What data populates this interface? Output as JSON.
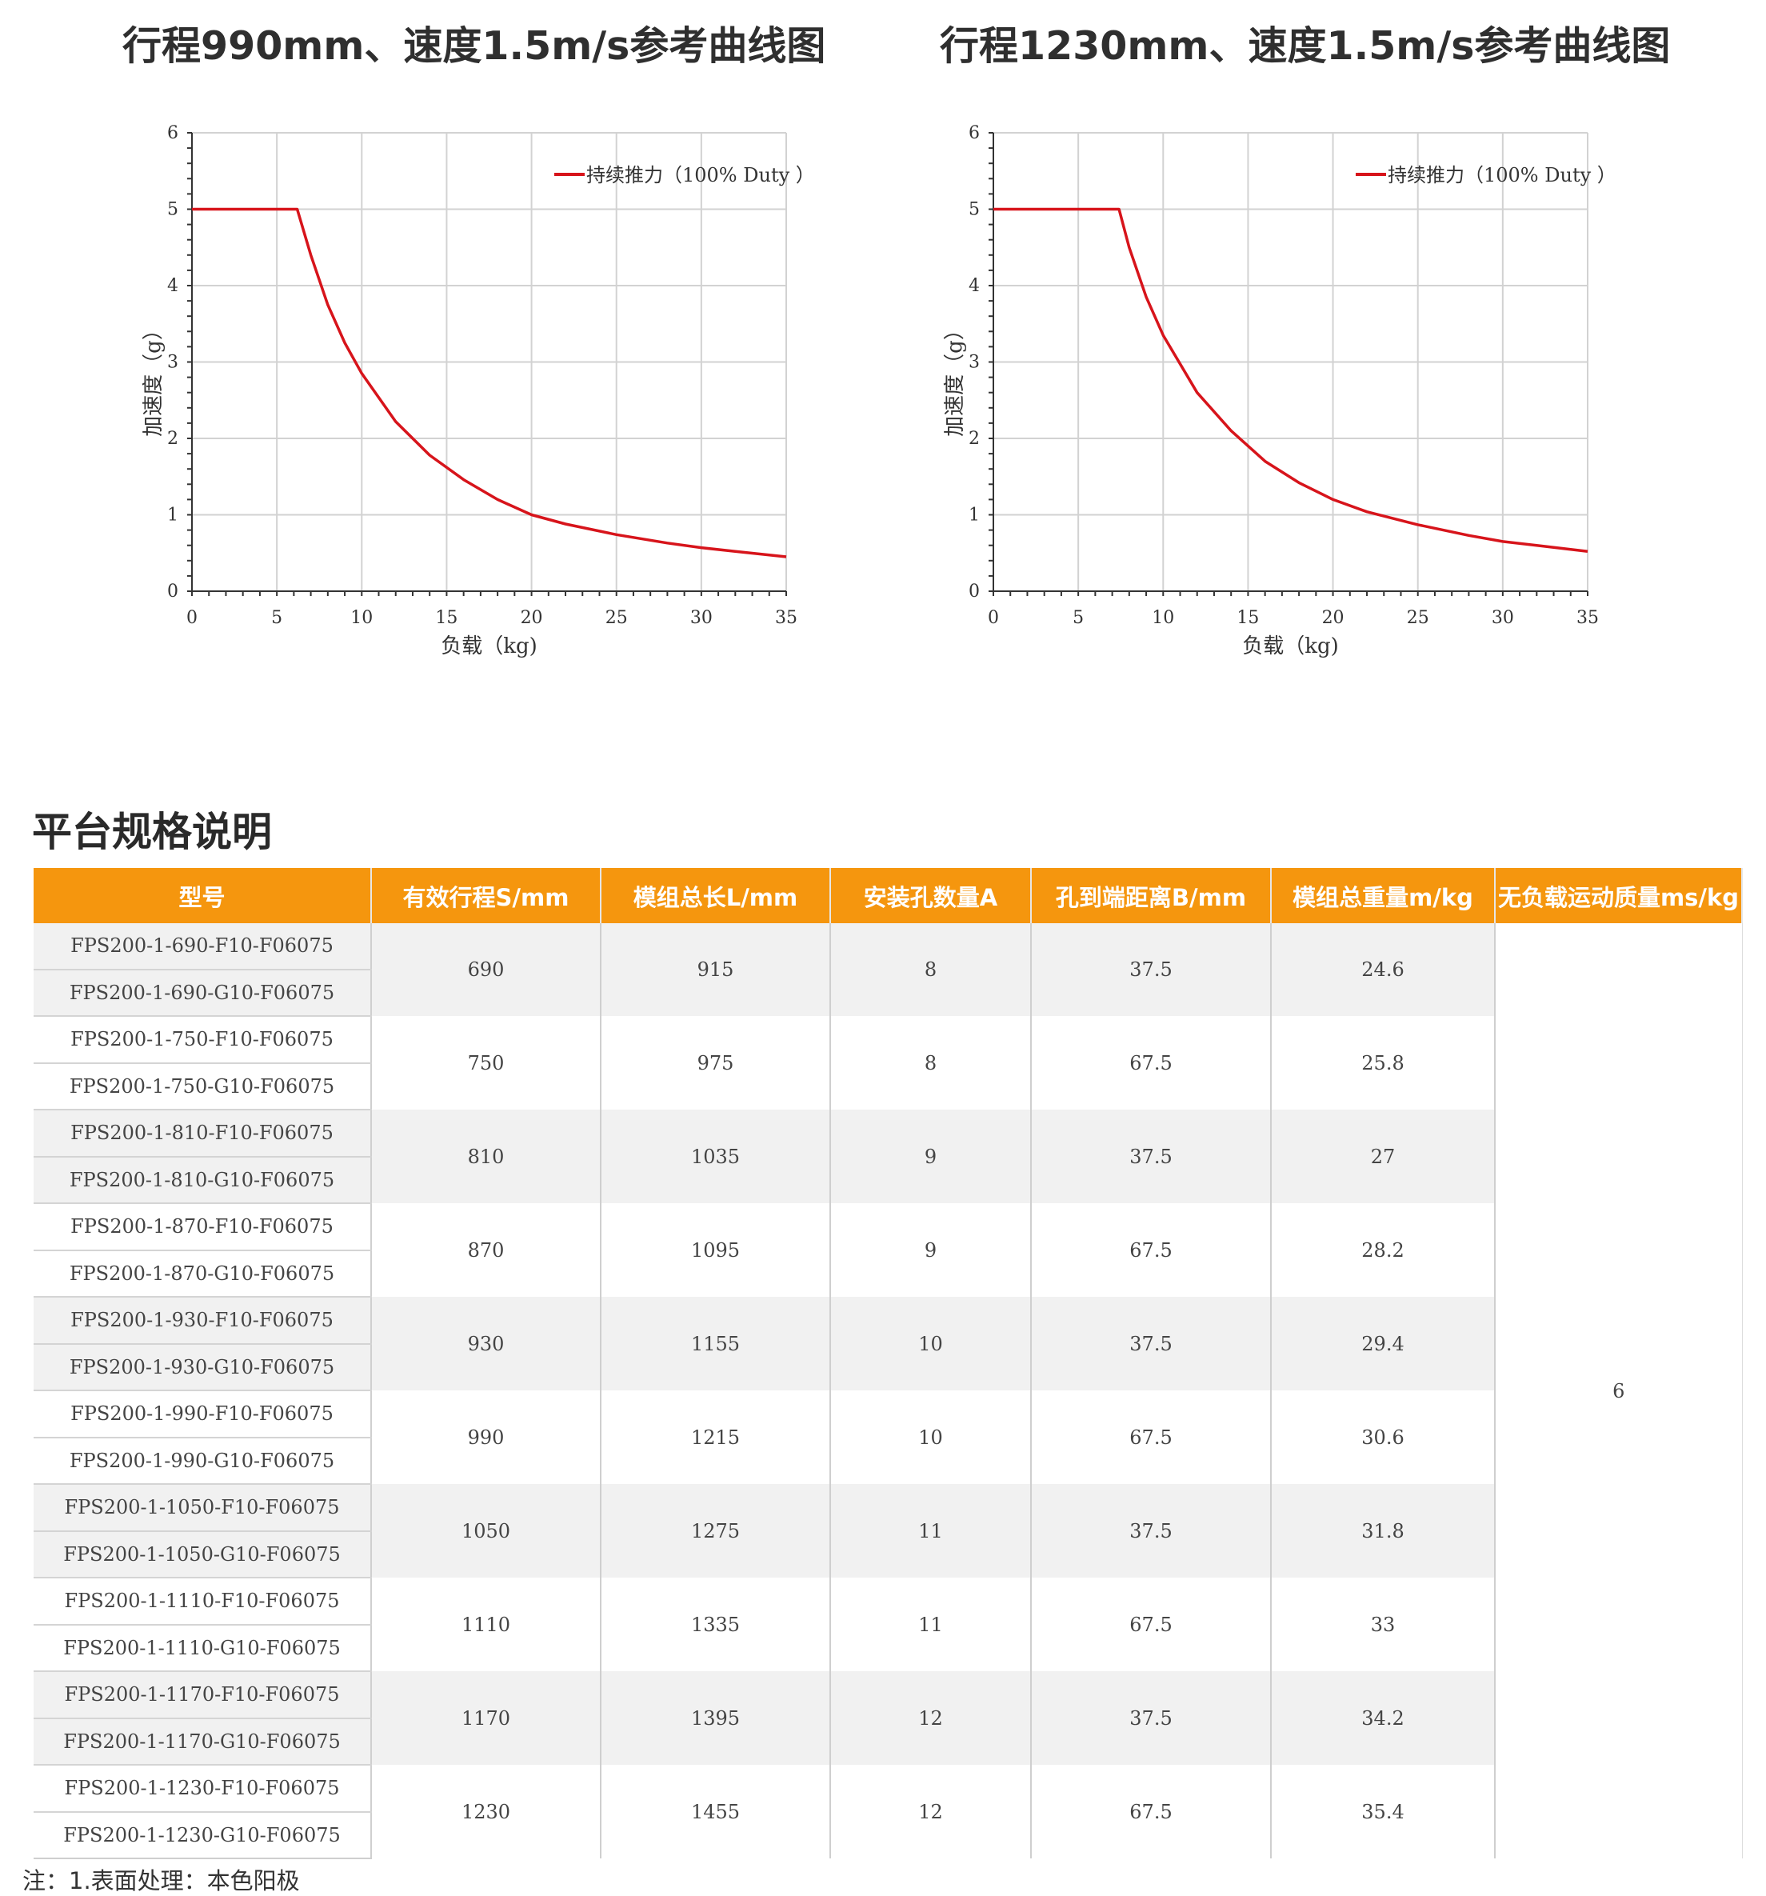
{
  "charts": [
    {
      "title": "行程990mm、速度1.5m/s参考曲线图",
      "chart_data": {
        "type": "line",
        "xlabel": "负载（kg)",
        "ylabel": "加速度（g）",
        "xlim": [
          0,
          35
        ],
        "ylim": [
          0,
          6
        ],
        "x_ticks": [
          "0",
          "5",
          "10",
          "15",
          "20",
          "25",
          "30",
          "35"
        ],
        "y_ticks": [
          "0",
          "1",
          "2",
          "3",
          "4",
          "5",
          "6"
        ],
        "grid": true,
        "legend_position": "top-right",
        "series": [
          {
            "name": "持续推力（100% Duty ）",
            "color": "#d7141b",
            "x": [
              0,
              6.2,
              7,
              8,
              9,
              10,
              12,
              14,
              16,
              18,
              20,
              22,
              25,
              28,
              30,
              32,
              35
            ],
            "y": [
              5,
              5,
              4.4,
              3.75,
              3.25,
              2.85,
              2.22,
              1.78,
              1.46,
              1.2,
              1.0,
              0.88,
              0.74,
              0.63,
              0.57,
              0.52,
              0.45
            ]
          }
        ]
      }
    },
    {
      "title": "行程1230mm、速度1.5m/s参考曲线图",
      "chart_data": {
        "type": "line",
        "xlabel": "负载（kg)",
        "ylabel": "加速度（g）",
        "xlim": [
          0,
          35
        ],
        "ylim": [
          0,
          6
        ],
        "x_ticks": [
          "0",
          "5",
          "10",
          "15",
          "20",
          "25",
          "30",
          "35"
        ],
        "y_ticks": [
          "0",
          "1",
          "2",
          "3",
          "4",
          "5",
          "6"
        ],
        "grid": true,
        "legend_position": "top-right",
        "series": [
          {
            "name": "持续推力（100% Duty ）",
            "color": "#d7141b",
            "x": [
              0,
              7.4,
              8,
              9,
              10,
              12,
              14,
              16,
              18,
              20,
              22,
              25,
              28,
              30,
              32,
              35
            ],
            "y": [
              5,
              5,
              4.5,
              3.85,
              3.35,
              2.6,
              2.1,
              1.7,
              1.42,
              1.2,
              1.04,
              0.87,
              0.73,
              0.65,
              0.6,
              0.52
            ]
          }
        ]
      }
    }
  ],
  "section_title": "平台规格说明",
  "table": {
    "headers": [
      "型号",
      "有效行程S/mm",
      "模组总长L/mm",
      "安装孔数量A",
      "孔到端距离B/mm",
      "模组总重量m/kg",
      "无负载运动质量ms/kg"
    ],
    "groups": [
      {
        "models": [
          "FPS200-1-690-F10-F06075",
          "FPS200-1-690-G10-F06075"
        ],
        "stroke": "690",
        "length": "915",
        "holes": "8",
        "distance": "37.5",
        "weight": "24.6"
      },
      {
        "models": [
          "FPS200-1-750-F10-F06075",
          "FPS200-1-750-G10-F06075"
        ],
        "stroke": "750",
        "length": "975",
        "holes": "8",
        "distance": "67.5",
        "weight": "25.8"
      },
      {
        "models": [
          "FPS200-1-810-F10-F06075",
          "FPS200-1-810-G10-F06075"
        ],
        "stroke": "810",
        "length": "1035",
        "holes": "9",
        "distance": "37.5",
        "weight": "27"
      },
      {
        "models": [
          "FPS200-1-870-F10-F06075",
          "FPS200-1-870-G10-F06075"
        ],
        "stroke": "870",
        "length": "1095",
        "holes": "9",
        "distance": "67.5",
        "weight": "28.2"
      },
      {
        "models": [
          "FPS200-1-930-F10-F06075",
          "FPS200-1-930-G10-F06075"
        ],
        "stroke": "930",
        "length": "1155",
        "holes": "10",
        "distance": "37.5",
        "weight": "29.4"
      },
      {
        "models": [
          "FPS200-1-990-F10-F06075",
          "FPS200-1-990-G10-F06075"
        ],
        "stroke": "990",
        "length": "1215",
        "holes": "10",
        "distance": "67.5",
        "weight": "30.6"
      },
      {
        "models": [
          "FPS200-1-1050-F10-F06075",
          "FPS200-1-1050-G10-F06075"
        ],
        "stroke": "1050",
        "length": "1275",
        "holes": "11",
        "distance": "37.5",
        "weight": "31.8"
      },
      {
        "models": [
          "FPS200-1-1110-F10-F06075",
          "FPS200-1-1110-G10-F06075"
        ],
        "stroke": "1110",
        "length": "1335",
        "holes": "11",
        "distance": "67.5",
        "weight": "33"
      },
      {
        "models": [
          "FPS200-1-1170-F10-F06075",
          "FPS200-1-1170-G10-F06075"
        ],
        "stroke": "1170",
        "length": "1395",
        "holes": "12",
        "distance": "37.5",
        "weight": "34.2"
      },
      {
        "models": [
          "FPS200-1-1230-F10-F06075",
          "FPS200-1-1230-G10-F06075"
        ],
        "stroke": "1230",
        "length": "1455",
        "holes": "12",
        "distance": "67.5",
        "weight": "35.4"
      }
    ],
    "moving_mass": "6"
  },
  "footer_note": "注：1.表面处理：本色阳极"
}
